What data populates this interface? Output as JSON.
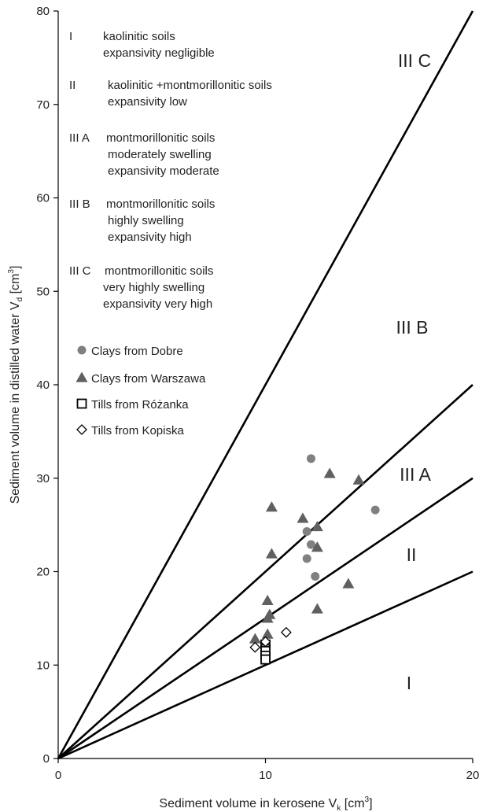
{
  "chart_data": {
    "type": "scatter",
    "title": "",
    "xlabel": "Sediment volume in kerosene V",
    "xlabel_sub": "k",
    "xlabel_unit": " [cm",
    "xlabel_sup": "3",
    "xlabel_end": "]",
    "ylabel": "Sediment volume in distilled water V",
    "ylabel_sub": "d",
    "ylabel_unit": " [cm",
    "ylabel_sup": "3",
    "ylabel_end": "]",
    "xlim": [
      0,
      20
    ],
    "ylim": [
      0,
      80
    ],
    "xticks": [
      0,
      10,
      20
    ],
    "yticks": [
      0,
      10,
      20,
      30,
      40,
      50,
      60,
      70,
      80
    ],
    "grid": false,
    "boundary_lines": [
      {
        "slope": 1.0
      },
      {
        "slope": 1.5
      },
      {
        "slope": 2.0
      },
      {
        "slope": 4.0
      }
    ],
    "zone_labels": [
      "I",
      "II",
      "III A",
      "III B",
      "III C"
    ],
    "legend_text": [
      {
        "code": "I",
        "lines": [
          "kaolinitic soils",
          "expansivity  negligible"
        ]
      },
      {
        "code": "II",
        "lines": [
          "kaolinitic +montmorillonitic soils",
          "expansivity  low"
        ]
      },
      {
        "code": "III A",
        "lines": [
          "montmorillonitic soils",
          "moderately swelling",
          "expansivity  moderate"
        ]
      },
      {
        "code": "III B",
        "lines": [
          "montmorillonitic soils",
          "highly swelling",
          "expansivity  high"
        ]
      },
      {
        "code": "III C",
        "lines": [
          "montmorillonitic soils",
          "very highly swelling",
          "expansivity  very high"
        ]
      }
    ],
    "legend_placement": "top-left",
    "series": [
      {
        "name": "Clays from Dobre",
        "marker": "circle",
        "color": "#808080",
        "x": [
          12.2,
          12.0,
          12.2,
          12.0,
          12.4,
          15.3
        ],
        "y": [
          32.1,
          24.3,
          22.9,
          21.4,
          19.5,
          26.6
        ]
      },
      {
        "name": "Clays from Warszawa",
        "marker": "triangle",
        "color": "#606060",
        "x": [
          10.3,
          10.3,
          10.1,
          10.2,
          10.1,
          10.1,
          9.5,
          11.8,
          12.5,
          12.5,
          12.5,
          13.1,
          14.5,
          14.0
        ],
        "y": [
          26.9,
          21.9,
          16.9,
          15.4,
          15.0,
          13.3,
          12.8,
          25.7,
          24.8,
          22.6,
          16.0,
          30.5,
          29.8,
          18.7
        ]
      },
      {
        "name": "Tills from Różanka",
        "marker": "square",
        "color": "#000000",
        "x": [
          10.0,
          10.0,
          10.0,
          10.0,
          10.0
        ],
        "y": [
          12.2,
          11.7,
          11.5,
          11.0,
          10.6
        ]
      },
      {
        "name": "Tills from Kopiska",
        "marker": "diamond",
        "color": "#000000",
        "x": [
          9.5,
          10.0,
          11.0
        ],
        "y": [
          11.9,
          12.5,
          13.5
        ]
      }
    ]
  }
}
